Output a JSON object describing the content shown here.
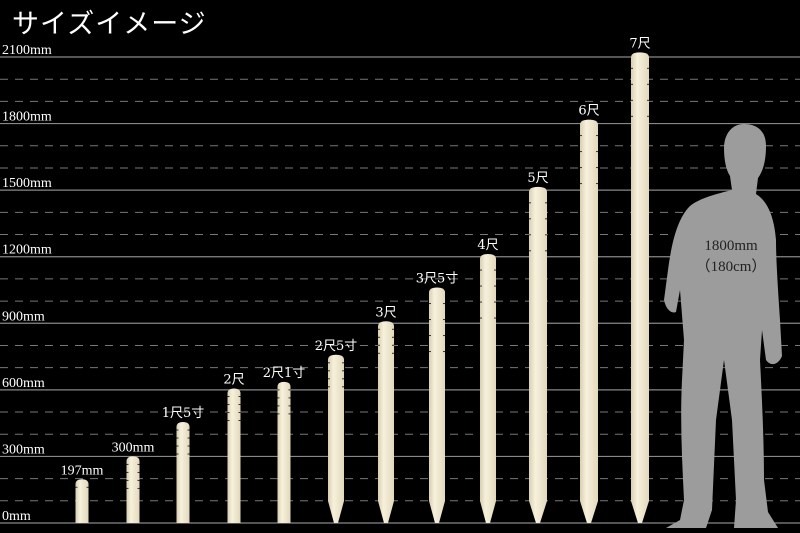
{
  "title": "サイズイメージ",
  "chart_data": {
    "type": "bar",
    "title": "サイズイメージ",
    "ylim": [
      0,
      2100
    ],
    "unit": "mm",
    "grid": true,
    "y_ticks": [
      "0mm",
      "300mm",
      "600mm",
      "900mm",
      "1200mm",
      "1500mm",
      "1800mm",
      "2100mm"
    ],
    "y_tick_values": [
      0,
      300,
      600,
      900,
      1200,
      1500,
      1800,
      2100
    ],
    "categories": [
      "197mm",
      "300mm",
      "1尺5寸",
      "2尺",
      "2尺1寸",
      "2尺5寸",
      "3尺",
      "3尺5寸",
      "4尺",
      "5尺",
      "6尺",
      "7尺"
    ],
    "values": [
      197,
      300,
      455,
      606,
      636,
      758,
      909,
      1061,
      1212,
      1515,
      1818,
      2121
    ],
    "pointed_bottom": [
      false,
      false,
      false,
      false,
      false,
      true,
      true,
      true,
      true,
      true,
      true,
      true
    ],
    "post_color": "#f1e9cf",
    "reference": {
      "value": 1800,
      "label_line1": "1800mm",
      "label_line2": "（180cm）",
      "color": "#9c9c9c"
    }
  }
}
